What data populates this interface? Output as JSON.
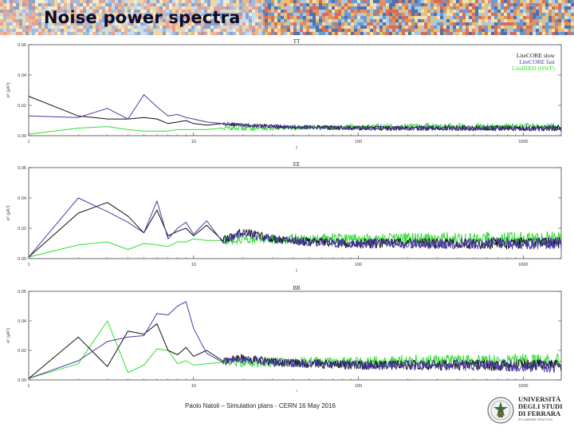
{
  "slide": {
    "title": "Noise power spectra",
    "footer": "Paolo Natoli – Simulation plans - CERN 16 May 2016",
    "logo_text": "UNIVERSITÀ\nDEGLI STUDI\nDI FERRARA",
    "logo_subtext": "EX LABORE FRUCTUS"
  },
  "chart_data": [
    {
      "type": "line",
      "title": "TT",
      "ylabel": "σ² (μK²)",
      "xscale": "log",
      "xlim": [
        1,
        1700
      ],
      "ylim": [
        0,
        0.06
      ],
      "yticks": [
        0,
        0.02,
        0.04,
        0.06
      ],
      "ytick_labels": [
        "0.00",
        "0.02",
        "0.04",
        "0.06"
      ],
      "xticks": [
        1,
        10,
        100,
        1000
      ],
      "xtick_labels": [
        "1",
        "10",
        "100",
        "1000"
      ],
      "xlabel": "l",
      "legend_position": "top-right",
      "series": [
        {
          "name": "LiteCORE slow",
          "color": "#111111",
          "x": [
            1,
            2,
            3,
            4,
            5,
            6,
            7,
            8,
            9,
            10,
            12,
            15,
            20,
            30,
            50,
            100,
            200,
            500,
            1700
          ],
          "values": [
            0.026,
            0.013,
            0.011,
            0.011,
            0.012,
            0.011,
            0.008,
            0.009,
            0.01,
            0.008,
            0.007,
            0.008,
            0.007,
            0.006,
            0.0055,
            0.005,
            0.005,
            0.005,
            0.005
          ],
          "noise": 0.0012
        },
        {
          "name": "LiteCORE fast",
          "color": "#4a3aa8",
          "x": [
            1,
            2,
            3,
            4,
            5,
            6,
            7,
            8,
            9,
            10,
            12,
            15,
            20,
            30,
            50,
            100,
            200,
            500,
            1700
          ],
          "values": [
            0.013,
            0.012,
            0.018,
            0.011,
            0.027,
            0.019,
            0.013,
            0.014,
            0.012,
            0.011,
            0.009,
            0.008,
            0.007,
            0.006,
            0.0055,
            0.005,
            0.005,
            0.005,
            0.005
          ],
          "noise": 0.0012
        },
        {
          "name": "LiteBIRD (HWP)",
          "color": "#33dd33",
          "x": [
            1,
            2,
            3,
            4,
            5,
            6,
            7,
            8,
            9,
            10,
            12,
            15,
            20,
            30,
            50,
            100,
            200,
            500,
            1700
          ],
          "values": [
            0.001,
            0.005,
            0.006,
            0.004,
            0.003,
            0.003,
            0.003,
            0.004,
            0.004,
            0.004,
            0.004,
            0.005,
            0.005,
            0.005,
            0.0055,
            0.006,
            0.006,
            0.006,
            0.006
          ],
          "noise": 0.0015
        }
      ]
    },
    {
      "type": "line",
      "title": "EE",
      "ylabel": "σ² (μK²)",
      "xscale": "log",
      "xlim": [
        1,
        1700
      ],
      "ylim": [
        0,
        0.06
      ],
      "yticks": [
        0,
        0.02,
        0.04,
        0.06
      ],
      "ytick_labels": [
        "0.00",
        "0.02",
        "0.04",
        "0.06"
      ],
      "xticks": [
        1,
        10,
        100,
        1000
      ],
      "xtick_labels": [
        "1",
        "10",
        "100",
        "1000"
      ],
      "xlabel": "l",
      "series": [
        {
          "name": "LiteCORE slow",
          "color": "#111111",
          "x": [
            1,
            2,
            3,
            4,
            5,
            6,
            7,
            8,
            9,
            10,
            12,
            15,
            20,
            30,
            50,
            100,
            200,
            500,
            1700
          ],
          "values": [
            0.001,
            0.03,
            0.037,
            0.028,
            0.017,
            0.032,
            0.015,
            0.018,
            0.02,
            0.015,
            0.022,
            0.012,
            0.018,
            0.013,
            0.011,
            0.01,
            0.01,
            0.01,
            0.01
          ],
          "noise": 0.0025
        },
        {
          "name": "LiteCORE fast",
          "color": "#4a3aa8",
          "x": [
            1,
            2,
            3,
            4,
            5,
            6,
            7,
            8,
            9,
            10,
            12,
            15,
            20,
            30,
            50,
            100,
            200,
            500,
            1700
          ],
          "values": [
            0.001,
            0.04,
            0.031,
            0.024,
            0.017,
            0.038,
            0.013,
            0.02,
            0.024,
            0.016,
            0.025,
            0.011,
            0.017,
            0.013,
            0.011,
            0.01,
            0.01,
            0.01,
            0.01
          ],
          "noise": 0.0025
        },
        {
          "name": "LiteBIRD (HWP)",
          "color": "#33dd33",
          "x": [
            1,
            2,
            3,
            4,
            5,
            6,
            7,
            8,
            9,
            10,
            12,
            15,
            20,
            30,
            50,
            100,
            200,
            500,
            1700
          ],
          "values": [
            0.001,
            0.009,
            0.011,
            0.006,
            0.01,
            0.009,
            0.008,
            0.011,
            0.011,
            0.013,
            0.012,
            0.012,
            0.013,
            0.013,
            0.013,
            0.013,
            0.013,
            0.013,
            0.013
          ],
          "noise": 0.003
        }
      ]
    },
    {
      "type": "line",
      "title": "BB",
      "ylabel": "σ² (μK²)",
      "xscale": "log",
      "xlim": [
        1,
        1700
      ],
      "ylim": [
        0,
        0.06
      ],
      "yticks": [
        0,
        0.02,
        0.04,
        0.06
      ],
      "ytick_labels": [
        "0.00",
        "0.02",
        "0.04",
        "0.06"
      ],
      "xticks": [
        1,
        10,
        100,
        1000
      ],
      "xtick_labels": [
        "1",
        "10",
        "100",
        "1000"
      ],
      "xlabel": "l",
      "series": [
        {
          "name": "LiteCORE slow",
          "color": "#111111",
          "x": [
            1,
            2,
            3,
            4,
            5,
            6,
            7,
            8,
            9,
            10,
            12,
            15,
            20,
            30,
            50,
            100,
            200,
            500,
            1700
          ],
          "values": [
            0.001,
            0.029,
            0.009,
            0.033,
            0.031,
            0.038,
            0.02,
            0.017,
            0.022,
            0.016,
            0.02,
            0.013,
            0.015,
            0.012,
            0.011,
            0.01,
            0.01,
            0.01,
            0.01
          ],
          "noise": 0.0025
        },
        {
          "name": "LiteCORE fast",
          "color": "#4a3aa8",
          "x": [
            1,
            2,
            3,
            4,
            5,
            6,
            7,
            8,
            9,
            10,
            12,
            15,
            20,
            30,
            50,
            100,
            200,
            500,
            1700
          ],
          "values": [
            0.001,
            0.013,
            0.026,
            0.029,
            0.03,
            0.045,
            0.044,
            0.05,
            0.053,
            0.035,
            0.018,
            0.012,
            0.014,
            0.012,
            0.011,
            0.01,
            0.01,
            0.01,
            0.009
          ],
          "noise": 0.0025
        },
        {
          "name": "LiteBIRD (HWP)",
          "color": "#33dd33",
          "x": [
            1,
            2,
            3,
            4,
            5,
            6,
            7,
            8,
            9,
            10,
            12,
            15,
            20,
            30,
            50,
            100,
            200,
            500,
            1700
          ],
          "values": [
            0.001,
            0.011,
            0.04,
            0.005,
            0.01,
            0.021,
            0.02,
            0.011,
            0.013,
            0.01,
            0.011,
            0.012,
            0.012,
            0.012,
            0.012,
            0.012,
            0.013,
            0.013,
            0.013
          ],
          "noise": 0.003
        }
      ]
    }
  ]
}
